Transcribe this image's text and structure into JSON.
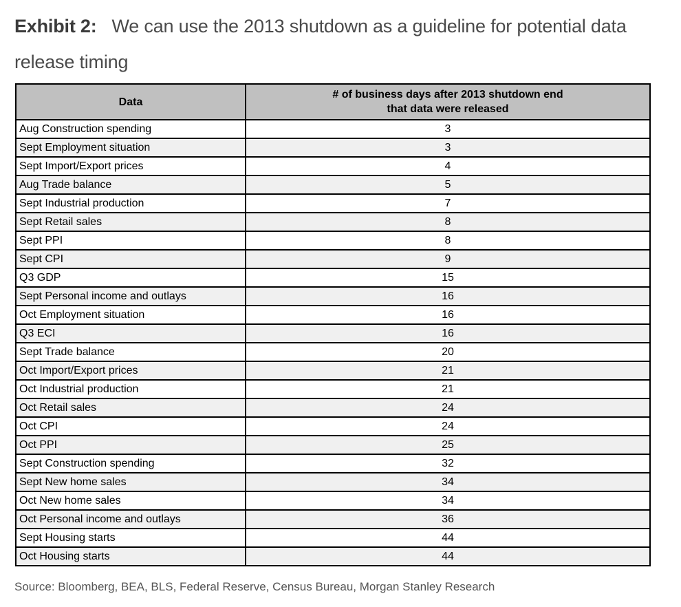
{
  "title": {
    "label": "Exhibit 2:",
    "text": "We can use the 2013 shutdown as a guideline for potential data release timing"
  },
  "table": {
    "header": {
      "data_col": "Data",
      "days_col_line1": "# of business days after 2013 shutdown end",
      "days_col_line2": "that data were released"
    },
    "rows": [
      {
        "data": "Aug Construction spending",
        "days": "3"
      },
      {
        "data": "Sept Employment situation",
        "days": "3"
      },
      {
        "data": "Sept Import/Export prices",
        "days": "4"
      },
      {
        "data": "Aug Trade balance",
        "days": "5"
      },
      {
        "data": "Sept Industrial production",
        "days": "7"
      },
      {
        "data": "Sept Retail sales",
        "days": "8"
      },
      {
        "data": "Sept PPI",
        "days": "8"
      },
      {
        "data": "Sept CPI",
        "days": "9"
      },
      {
        "data": "Q3 GDP",
        "days": "15"
      },
      {
        "data": "Sept Personal income and outlays",
        "days": "16"
      },
      {
        "data": "Oct Employment situation",
        "days": "16"
      },
      {
        "data": "Q3 ECI",
        "days": "16"
      },
      {
        "data": "Sept Trade balance",
        "days": "20"
      },
      {
        "data": "Oct Import/Export prices",
        "days": "21"
      },
      {
        "data": "Oct Industrial production",
        "days": "21"
      },
      {
        "data": "Oct Retail sales",
        "days": "24"
      },
      {
        "data": "Oct CPI",
        "days": "24"
      },
      {
        "data": "Oct PPI",
        "days": "25"
      },
      {
        "data": "Sept Construction spending",
        "days": "32"
      },
      {
        "data": "Sept New home sales",
        "days": "34"
      },
      {
        "data": "Oct New home sales",
        "days": "34"
      },
      {
        "data": "Oct Personal income and outlays",
        "days": "36"
      },
      {
        "data": "Sept Housing starts",
        "days": "44"
      },
      {
        "data": "Oct Housing starts",
        "days": "44"
      }
    ]
  },
  "source": "Source: Bloomberg, BEA, BLS, Federal Reserve, Census Bureau, Morgan Stanley Research",
  "colors": {
    "header_bg": "#c0c0c0",
    "row_alt_bg": "#f0f0f0",
    "border": "#000000",
    "title_text": "#3b3b3b",
    "source_text": "#555555"
  }
}
